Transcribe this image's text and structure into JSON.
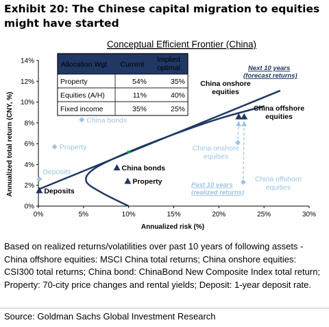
{
  "exhibit_title": "Exhibit 20: The Chinese capital migration to equities might have started",
  "note": "Based on realized returns/volatilities over past 10 years of following assets - China offshore equities: MSCI China total returns; China onshore equities: CSI300 total returns; China bond: ChinaBond New Composite Index total return; Property: 70-city price changes and rental yields; Deposit: 1-year deposit rate.",
  "source": "Source: Goldman Sachs Global Investment Research",
  "colors": {
    "dark": "#1f3864",
    "light": "#9dc3e6",
    "red": "#ff0000",
    "green": "#00a650"
  },
  "chart_data": {
    "type": "scatter",
    "title": "Conceptual Efficient Frontier (China)",
    "xlabel": "Annualized risk (%)",
    "ylabel": "Annualized total return (CNY, %)",
    "xlim": [
      0,
      30
    ],
    "ylim": [
      0,
      14
    ],
    "x_ticks": [
      "0%",
      "5%",
      "10%",
      "15%",
      "20%",
      "25%",
      "30%"
    ],
    "y_ticks": [
      "0%",
      "2%",
      "4%",
      "6%",
      "8%",
      "10%",
      "12%",
      "14%"
    ],
    "series": [
      {
        "name": "Past 10 years (realized returns)",
        "color": "light",
        "marker": "diamond",
        "points": [
          {
            "label": "Deposits",
            "x": 0.1,
            "y": 2.6
          },
          {
            "label": "Property",
            "x": 1.8,
            "y": 5.7
          },
          {
            "label": "China bonds",
            "x": 4.8,
            "y": 8.3
          },
          {
            "label": "China onshore equities",
            "x": 22.1,
            "y": 6.1
          },
          {
            "label": "China offshore equities",
            "x": 22.7,
            "y": 2.3
          }
        ]
      },
      {
        "name": "Next 10 years (forecast returns)",
        "color": "dark",
        "marker": "triangle",
        "points": [
          {
            "label": "Deposits",
            "x": 0.1,
            "y": 1.5
          },
          {
            "label": "China bonds",
            "x": 8.7,
            "y": 3.7
          },
          {
            "label": "Property",
            "x": 9.9,
            "y": 2.4
          },
          {
            "label": "China onshore equities",
            "x": 22.2,
            "y": 8.6
          },
          {
            "label": "China offshore equities",
            "x": 22.8,
            "y": 8.6
          }
        ]
      }
    ],
    "capital_market_line": [
      [
        0,
        1.6
      ],
      [
        26.8,
        11.1
      ]
    ],
    "capital_market_line_tangent_marker": [
      10,
      5.2
    ],
    "frontier_curve": [
      [
        10,
        0
      ],
      [
        7,
        1.3
      ],
      [
        5.3,
        2.4
      ],
      [
        6.2,
        3.6
      ],
      [
        10,
        5.2
      ],
      [
        15,
        6.9
      ],
      [
        20,
        8.4
      ],
      [
        25,
        9.6
      ]
    ],
    "legend_notes": {
      "forecast": [
        "Next 10 years",
        "(forecast returns)"
      ],
      "realized": [
        "Past 10 years",
        "(realized returns)"
      ]
    },
    "annotations": {
      "onshore_dark": [
        "China onshore",
        "equities"
      ],
      "offshore_dark": [
        "China offshore",
        "equities"
      ],
      "onshore_light": [
        "China onshore",
        "equities"
      ],
      "offshore_light": [
        "China offshore",
        "equities"
      ]
    },
    "table": {
      "headers": [
        "Allocation Wgt",
        "Current",
        "Implied optimal"
      ],
      "header_optimal_lines": [
        "Implied",
        "optimal"
      ],
      "rows": [
        {
          "label": "Property",
          "current": "54%",
          "optimal": "35%",
          "highlight": false
        },
        {
          "label": "Equities (A/H)",
          "current": "11%",
          "optimal": "40%",
          "highlight": true
        },
        {
          "label": "Fixed income",
          "current": "35%",
          "optimal": "25%",
          "highlight": false
        }
      ]
    }
  }
}
